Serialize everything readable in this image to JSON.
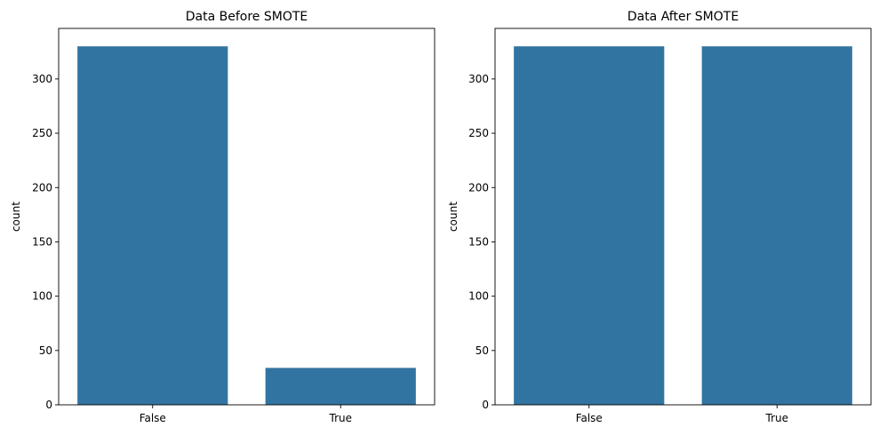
{
  "bar_color": "#3274a1",
  "chart_data": [
    {
      "type": "bar",
      "title": "Data Before SMOTE",
      "xlabel": "",
      "ylabel": "count",
      "categories": [
        "False",
        "True"
      ],
      "values": [
        330,
        34
      ],
      "ylim": [
        0,
        346.5
      ],
      "yticks": [
        0,
        50,
        100,
        150,
        200,
        250,
        300
      ],
      "grid": false
    },
    {
      "type": "bar",
      "title": "Data After SMOTE",
      "xlabel": "",
      "ylabel": "count",
      "categories": [
        "False",
        "True"
      ],
      "values": [
        330,
        330
      ],
      "ylim": [
        0,
        346.5
      ],
      "yticks": [
        0,
        50,
        100,
        150,
        200,
        250,
        300
      ],
      "grid": false
    }
  ]
}
